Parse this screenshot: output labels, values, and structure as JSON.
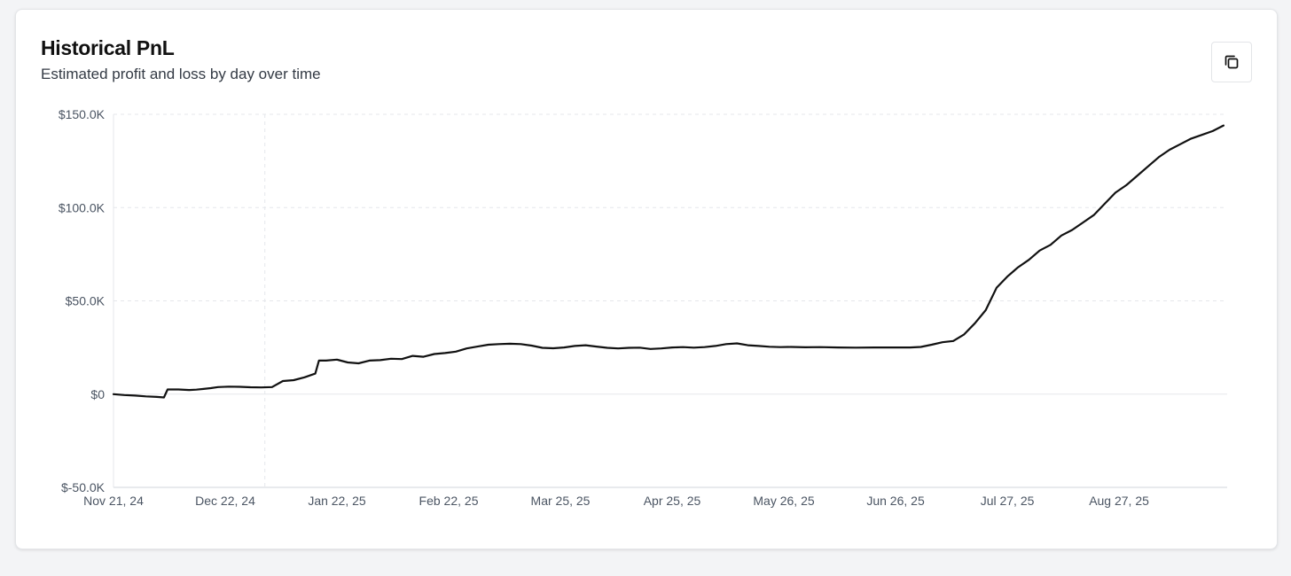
{
  "header": {
    "title": "Historical PnL",
    "subtitle": "Estimated profit and loss by day over time",
    "copy_icon": "copy-icon"
  },
  "colors": {
    "line": "#111111",
    "grid": "#e5e7eb",
    "axis": "#d1d5db",
    "text": "#4b5563"
  },
  "chart_data": {
    "type": "line",
    "title": "Historical PnL",
    "subtitle": "Estimated profit and loss by day over time",
    "xlabel": "",
    "ylabel": "",
    "ylim": [
      -50000,
      150000
    ],
    "xlim": [
      "2024-11-21",
      "2025-09-26"
    ],
    "y_ticks": [
      -50000,
      0,
      50000,
      100000,
      150000
    ],
    "y_tick_labels": [
      "$-50.0K",
      "$0",
      "$50.0K",
      "$100.0K",
      "$150.0K"
    ],
    "x_ticks": [
      "2024-11-21",
      "2024-12-22",
      "2025-01-22",
      "2025-02-22",
      "2025-03-25",
      "2025-04-25",
      "2025-05-26",
      "2025-06-26",
      "2025-07-27",
      "2025-08-27"
    ],
    "x_tick_labels": [
      "Nov 21, 24",
      "Dec 22, 24",
      "Jan 22, 25",
      "Feb 22, 25",
      "Mar 25, 25",
      "Apr 25, 25",
      "May 26, 25",
      "Jun 26, 25",
      "Jul 27, 25",
      "Aug 27, 25"
    ],
    "grid": true,
    "vertical_reference": "2025-01-02",
    "series": [
      {
        "x": [
          "2024-11-21",
          "2024-11-24",
          "2024-11-27",
          "2024-11-30",
          "2024-12-03",
          "2024-12-05",
          "2024-12-06",
          "2024-12-09",
          "2024-12-12",
          "2024-12-14",
          "2024-12-16",
          "2024-12-18",
          "2024-12-20",
          "2024-12-23",
          "2024-12-26",
          "2024-12-29",
          "2025-01-01",
          "2025-01-04",
          "2025-01-07",
          "2025-01-10",
          "2025-01-13",
          "2025-01-16",
          "2025-01-17",
          "2025-01-19",
          "2025-01-22",
          "2025-01-25",
          "2025-01-28",
          "2025-01-31",
          "2025-02-03",
          "2025-02-06",
          "2025-02-09",
          "2025-02-12",
          "2025-02-15",
          "2025-02-18",
          "2025-02-21",
          "2025-02-24",
          "2025-02-27",
          "2025-03-02",
          "2025-03-05",
          "2025-03-08",
          "2025-03-11",
          "2025-03-14",
          "2025-03-17",
          "2025-03-20",
          "2025-03-23",
          "2025-03-26",
          "2025-03-29",
          "2025-04-01",
          "2025-04-04",
          "2025-04-07",
          "2025-04-10",
          "2025-04-13",
          "2025-04-16",
          "2025-04-19",
          "2025-04-22",
          "2025-04-25",
          "2025-04-28",
          "2025-05-01",
          "2025-05-04",
          "2025-05-07",
          "2025-05-10",
          "2025-05-13",
          "2025-05-16",
          "2025-05-19",
          "2025-05-22",
          "2025-05-25",
          "2025-05-28",
          "2025-06-01",
          "2025-06-05",
          "2025-06-10",
          "2025-06-15",
          "2025-06-20",
          "2025-06-25",
          "2025-06-30",
          "2025-07-03",
          "2025-07-06",
          "2025-07-09",
          "2025-07-12",
          "2025-07-15",
          "2025-07-18",
          "2025-07-21",
          "2025-07-24",
          "2025-07-27",
          "2025-07-30",
          "2025-08-02",
          "2025-08-05",
          "2025-08-08",
          "2025-08-11",
          "2025-08-14",
          "2025-08-17",
          "2025-08-20",
          "2025-08-23",
          "2025-08-26",
          "2025-08-29",
          "2025-09-01",
          "2025-09-04",
          "2025-09-07",
          "2025-09-10",
          "2025-09-13",
          "2025-09-16",
          "2025-09-19",
          "2025-09-22",
          "2025-09-25"
        ],
        "y": [
          0,
          -500,
          -800,
          -1200,
          -1500,
          -1800,
          2500,
          2500,
          2200,
          2400,
          2800,
          3200,
          3800,
          4000,
          3900,
          3700,
          3600,
          3800,
          7000,
          7500,
          9000,
          11000,
          18000,
          18000,
          18500,
          17000,
          16500,
          18000,
          18200,
          19000,
          18800,
          20500,
          20000,
          21500,
          22000,
          22800,
          24500,
          25500,
          26500,
          26800,
          27000,
          26800,
          26000,
          24800,
          24600,
          25000,
          25800,
          26200,
          25500,
          24800,
          24500,
          24800,
          24900,
          24200,
          24500,
          25000,
          25200,
          24900,
          25200,
          25800,
          26800,
          27200,
          26200,
          25800,
          25400,
          25200,
          25300,
          25100,
          25200,
          25000,
          24900,
          25000,
          25000,
          25000,
          25300,
          26500,
          27800,
          28500,
          32000,
          38000,
          45000,
          57000,
          63000,
          68000,
          72000,
          77000,
          80000,
          85000,
          88000,
          92000,
          96000,
          102000,
          108000,
          112000,
          117000,
          122000,
          127000,
          131000,
          134000,
          137000,
          139000,
          141000,
          144000
        ]
      }
    ]
  }
}
